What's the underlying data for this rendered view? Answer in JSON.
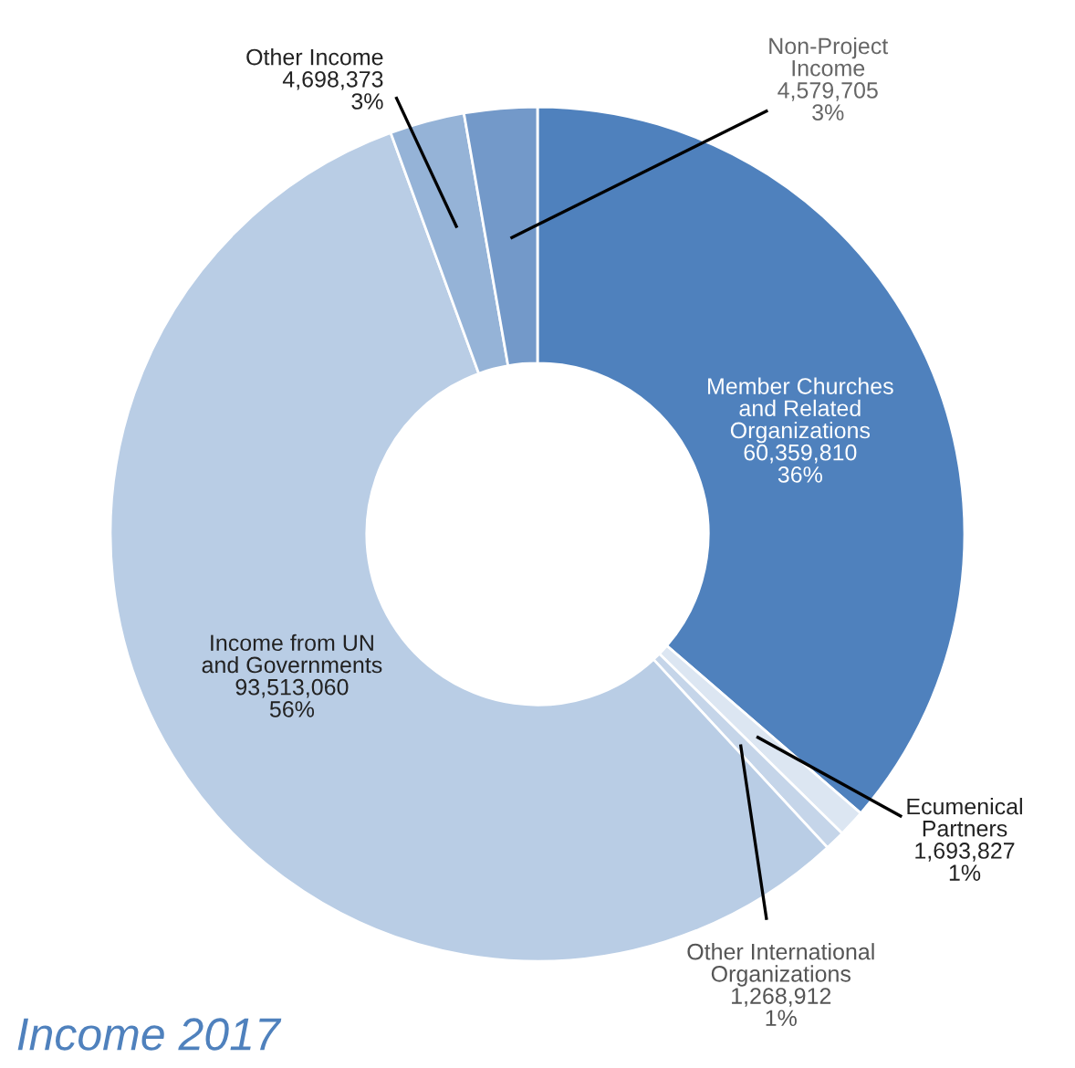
{
  "chart_data": {
    "type": "donut",
    "title": "Income 2017",
    "categories": [
      "Member Churches\nand Related\nOrganizations",
      "Ecumenical\nPartners",
      "Other International\nOrganizations",
      "Income from UN\nand Governments",
      "Other Income",
      "Non-Project\nIncome"
    ],
    "values": [
      60359810,
      1693827,
      1268912,
      93513060,
      4698373,
      4579705
    ],
    "value_labels": [
      "60,359,810\n36%",
      "1,693,827\n1%",
      "1,268,912\n1%",
      "93,513,060\n56%",
      "4,698,373\n3%",
      "4,579,705\n3%"
    ],
    "colors": [
      "#4f81bd",
      "#dce6f2",
      "#c5d5e9",
      "#b9cde5",
      "#95b3d7",
      "#7399c9"
    ],
    "legend": false
  }
}
